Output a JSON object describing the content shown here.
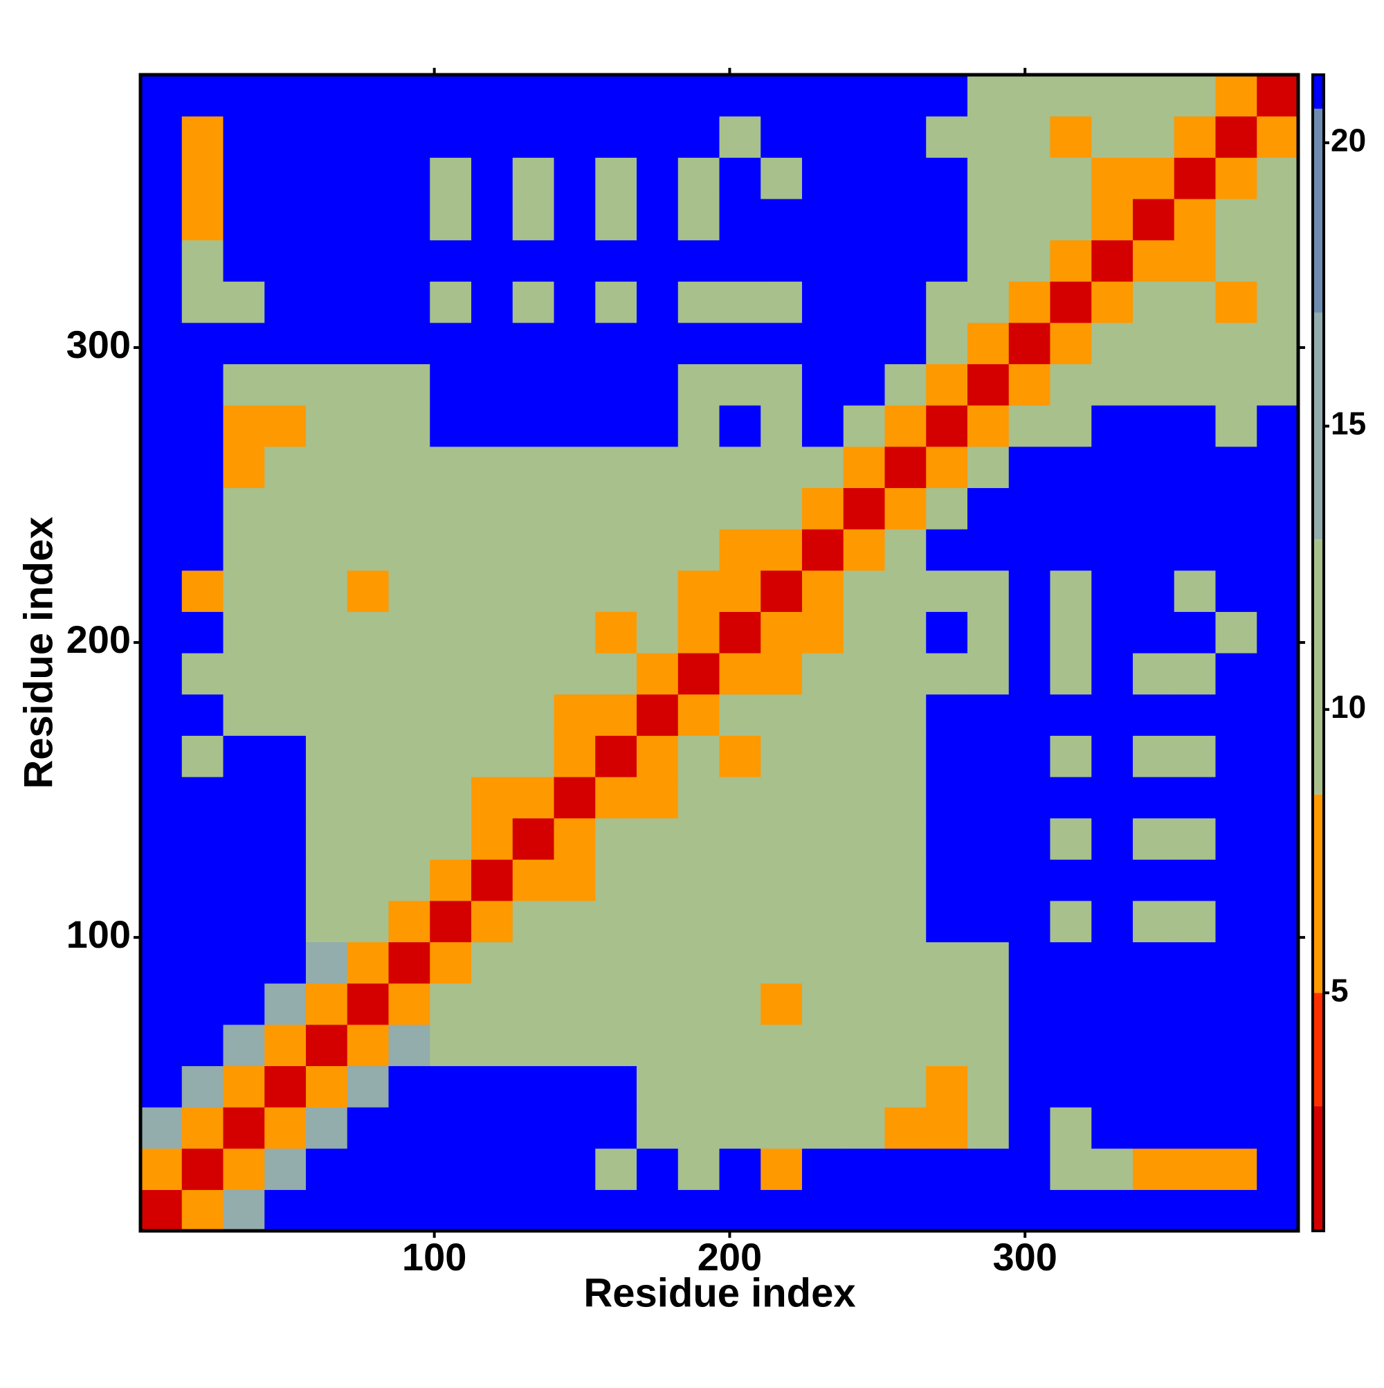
{
  "chart_data": {
    "type": "heatmap",
    "x_label": "Residue index",
    "y_label": "Residue index",
    "xlim": [
      0.5,
      392.5
    ],
    "ylim": [
      0.5,
      392.5
    ],
    "xticks": [
      100,
      200,
      300
    ],
    "yticks": [
      100,
      200,
      300
    ],
    "bins": [
      0.5,
      14.5,
      28.5,
      42.5,
      56.5,
      70.5,
      84.5,
      98.5,
      112.5,
      126.5,
      140.5,
      154.5,
      168.5,
      182.5,
      196.5,
      210.5,
      224.5,
      238.5,
      252.5,
      266.5,
      280.5,
      294.5,
      308.5,
      322.5,
      336.5,
      350.5,
      364.5,
      378.5,
      392.5
    ],
    "zlim": [
      0.8,
      21.2
    ],
    "zticks": [
      5,
      10,
      15,
      20
    ],
    "colorscale": [
      [
        3,
        "#d40000"
      ],
      [
        5,
        "#ff3000"
      ],
      [
        8.5,
        "#ff9900"
      ],
      [
        13,
        "#a8c08c"
      ],
      [
        17,
        "#93acac"
      ],
      [
        20.6,
        "#6e8cb0"
      ],
      [
        21.2,
        "#0000ff"
      ]
    ],
    "values": [
      [
        2,
        7,
        14,
        21,
        21,
        21,
        21,
        21,
        21,
        21,
        21,
        21,
        21,
        21,
        21,
        21,
        21,
        21,
        21,
        21,
        21,
        21,
        21,
        21,
        21,
        21,
        21,
        21
      ],
      [
        7,
        2,
        7,
        14,
        21,
        21,
        21,
        21,
        21,
        21,
        21,
        13,
        21,
        13,
        21,
        8,
        21,
        21,
        21,
        21,
        21,
        21,
        13,
        13,
        7,
        6,
        8,
        21
      ],
      [
        14,
        7,
        2,
        7,
        14,
        21,
        21,
        21,
        21,
        21,
        21,
        21,
        12,
        12,
        12,
        12,
        12,
        12,
        7,
        7,
        12,
        21,
        13,
        21,
        21,
        21,
        21,
        21
      ],
      [
        21,
        14,
        7,
        2,
        7,
        14,
        21,
        21,
        21,
        21,
        21,
        21,
        12,
        12,
        12,
        12,
        12,
        12,
        12,
        7,
        12,
        21,
        21,
        21,
        21,
        21,
        21,
        21
      ],
      [
        21,
        21,
        14,
        7,
        2,
        7,
        14,
        12,
        12,
        12,
        12,
        12,
        12,
        12,
        12,
        12,
        12,
        12,
        12,
        12,
        12,
        21,
        21,
        21,
        21,
        21,
        21,
        21
      ],
      [
        21,
        21,
        21,
        14,
        7,
        2,
        7,
        12,
        12,
        12,
        12,
        12,
        12,
        12,
        12,
        7,
        12,
        12,
        12,
        12,
        12,
        21,
        21,
        21,
        21,
        21,
        21,
        21
      ],
      [
        21,
        21,
        21,
        21,
        14,
        7,
        2,
        7,
        12,
        12,
        12,
        12,
        12,
        12,
        12,
        12,
        12,
        12,
        12,
        12,
        12,
        21,
        21,
        21,
        21,
        21,
        21,
        21
      ],
      [
        21,
        21,
        21,
        21,
        12,
        12,
        7,
        2,
        7,
        10,
        11,
        11,
        11,
        13,
        13,
        13,
        13,
        13,
        13,
        21,
        21,
        21,
        13,
        21,
        11,
        11,
        21,
        21
      ],
      [
        21,
        21,
        21,
        21,
        12,
        12,
        12,
        7,
        2,
        7,
        6,
        11,
        11,
        11,
        13,
        13,
        13,
        13,
        13,
        21,
        21,
        21,
        21,
        21,
        21,
        21,
        21,
        21
      ],
      [
        21,
        21,
        21,
        21,
        12,
        12,
        12,
        10,
        7,
        2,
        7,
        10,
        11,
        11,
        11,
        13,
        13,
        13,
        13,
        21,
        21,
        21,
        11,
        21,
        12,
        10,
        21,
        21
      ],
      [
        21,
        21,
        21,
        21,
        12,
        12,
        12,
        11,
        6,
        7,
        2,
        7,
        6,
        11,
        11,
        11,
        13,
        13,
        13,
        21,
        21,
        21,
        21,
        21,
        21,
        21,
        21,
        21
      ],
      [
        21,
        13,
        21,
        21,
        12,
        12,
        12,
        11,
        11,
        10,
        7,
        2,
        7,
        10,
        7,
        11,
        11,
        13,
        13,
        21,
        21,
        21,
        10,
        21,
        11,
        12,
        21,
        21
      ],
      [
        21,
        21,
        12,
        12,
        12,
        12,
        12,
        11,
        11,
        11,
        6,
        7,
        2,
        7,
        10,
        11,
        11,
        11,
        13,
        21,
        21,
        21,
        21,
        21,
        21,
        21,
        21,
        21
      ],
      [
        21,
        13,
        12,
        12,
        12,
        12,
        12,
        13,
        11,
        11,
        11,
        10,
        7,
        2,
        7,
        7,
        11,
        11,
        11,
        13,
        9,
        21,
        9,
        21,
        13,
        12,
        21,
        21
      ],
      [
        21,
        21,
        12,
        12,
        12,
        12,
        12,
        13,
        13,
        11,
        11,
        7,
        10,
        7,
        2,
        7,
        7,
        11,
        11,
        21,
        11,
        21,
        12,
        21,
        21,
        21,
        11,
        21
      ],
      [
        21,
        8,
        12,
        12,
        12,
        7,
        12,
        13,
        13,
        13,
        11,
        11,
        11,
        7,
        7,
        2,
        7,
        10,
        11,
        9,
        11,
        21,
        13,
        21,
        21,
        12,
        21,
        21
      ],
      [
        21,
        21,
        12,
        12,
        12,
        12,
        12,
        13,
        13,
        13,
        13,
        11,
        11,
        11,
        7,
        7,
        2,
        7,
        10,
        21,
        21,
        21,
        21,
        21,
        21,
        21,
        21,
        21
      ],
      [
        21,
        21,
        12,
        12,
        12,
        12,
        12,
        13,
        13,
        13,
        13,
        13,
        11,
        11,
        11,
        10,
        7,
        2,
        7,
        10,
        21,
        21,
        21,
        21,
        21,
        21,
        21,
        21
      ],
      [
        21,
        21,
        7,
        12,
        12,
        12,
        12,
        13,
        13,
        13,
        13,
        13,
        13,
        11,
        11,
        11,
        10,
        7,
        2,
        7,
        10,
        21,
        21,
        21,
        21,
        21,
        21,
        21
      ],
      [
        21,
        21,
        7,
        7,
        12,
        12,
        12,
        21,
        21,
        21,
        21,
        21,
        21,
        13,
        21,
        9,
        21,
        10,
        7,
        2,
        7,
        10,
        12,
        21,
        21,
        21,
        13,
        21
      ],
      [
        21,
        21,
        12,
        12,
        12,
        12,
        12,
        21,
        21,
        21,
        21,
        21,
        21,
        9,
        11,
        11,
        21,
        21,
        10,
        7,
        2,
        7,
        10,
        12,
        12,
        12,
        13,
        12
      ],
      [
        21,
        21,
        21,
        21,
        21,
        21,
        21,
        21,
        21,
        21,
        21,
        21,
        21,
        21,
        21,
        21,
        21,
        21,
        21,
        10,
        7,
        2,
        7,
        10,
        12,
        11,
        12,
        12
      ],
      [
        21,
        13,
        13,
        21,
        21,
        21,
        21,
        13,
        21,
        11,
        21,
        10,
        21,
        9,
        12,
        13,
        21,
        21,
        21,
        12,
        10,
        7,
        2,
        7,
        10,
        12,
        7,
        12
      ],
      [
        21,
        13,
        21,
        21,
        21,
        21,
        21,
        21,
        21,
        21,
        21,
        21,
        21,
        21,
        21,
        21,
        21,
        21,
        21,
        21,
        12,
        10,
        7,
        2,
        7,
        7,
        10,
        12
      ],
      [
        21,
        7,
        21,
        21,
        21,
        21,
        21,
        11,
        21,
        12,
        21,
        11,
        21,
        13,
        21,
        21,
        21,
        21,
        21,
        21,
        12,
        12,
        10,
        7,
        2,
        7,
        10,
        12
      ],
      [
        21,
        6,
        21,
        21,
        21,
        21,
        21,
        11,
        21,
        10,
        21,
        12,
        21,
        12,
        21,
        12,
        21,
        21,
        21,
        21,
        12,
        11,
        12,
        7,
        7,
        2,
        7,
        10
      ],
      [
        21,
        8,
        21,
        21,
        21,
        21,
        21,
        21,
        21,
        21,
        21,
        21,
        21,
        21,
        11,
        21,
        21,
        21,
        21,
        13,
        13,
        12,
        7,
        10,
        10,
        7,
        2,
        7
      ],
      [
        21,
        21,
        21,
        21,
        21,
        21,
        21,
        21,
        21,
        21,
        21,
        21,
        21,
        21,
        21,
        21,
        21,
        21,
        21,
        21,
        12,
        12,
        12,
        12,
        12,
        10,
        7,
        2
      ]
    ]
  }
}
